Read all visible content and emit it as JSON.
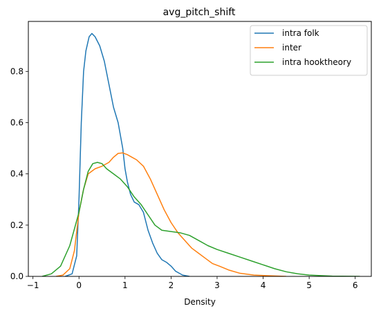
{
  "chart_data": {
    "type": "line",
    "title": "avg_pitch_shift",
    "xlabel": "Density",
    "ylabel": "",
    "xlim": [
      -1.1,
      6.35
    ],
    "ylim": [
      0,
      0.995
    ],
    "xticks": [
      -1,
      0,
      1,
      2,
      3,
      4,
      5,
      6
    ],
    "xtick_labels": [
      "−1",
      "0",
      "1",
      "2",
      "3",
      "4",
      "5",
      "6"
    ],
    "yticks": [
      0.0,
      0.2,
      0.4,
      0.6,
      0.8
    ],
    "ytick_labels": [
      "0.0",
      "0.2",
      "0.4",
      "0.6",
      "0.8"
    ],
    "grid": false,
    "legend_position": "top-right",
    "series": [
      {
        "name": "intra folk",
        "color": "#1f77b4",
        "points": [
          [
            -0.3,
            0.0
          ],
          [
            -0.15,
            0.01
          ],
          [
            -0.05,
            0.08
          ],
          [
            0.0,
            0.3
          ],
          [
            0.05,
            0.6
          ],
          [
            0.1,
            0.8
          ],
          [
            0.15,
            0.88
          ],
          [
            0.22,
            0.935
          ],
          [
            0.28,
            0.948
          ],
          [
            0.35,
            0.935
          ],
          [
            0.45,
            0.9
          ],
          [
            0.55,
            0.84
          ],
          [
            0.65,
            0.75
          ],
          [
            0.75,
            0.66
          ],
          [
            0.85,
            0.6
          ],
          [
            0.95,
            0.5
          ],
          [
            1.0,
            0.42
          ],
          [
            1.05,
            0.37
          ],
          [
            1.12,
            0.32
          ],
          [
            1.2,
            0.29
          ],
          [
            1.3,
            0.28
          ],
          [
            1.4,
            0.25
          ],
          [
            1.5,
            0.18
          ],
          [
            1.6,
            0.13
          ],
          [
            1.7,
            0.09
          ],
          [
            1.8,
            0.065
          ],
          [
            1.9,
            0.055
          ],
          [
            2.0,
            0.04
          ],
          [
            2.1,
            0.02
          ],
          [
            2.25,
            0.005
          ],
          [
            2.4,
            0.0
          ]
        ]
      },
      {
        "name": "inter",
        "color": "#ff7f0e",
        "points": [
          [
            -0.5,
            0.0
          ],
          [
            -0.35,
            0.005
          ],
          [
            -0.2,
            0.03
          ],
          [
            -0.1,
            0.1
          ],
          [
            0.0,
            0.25
          ],
          [
            0.1,
            0.34
          ],
          [
            0.2,
            0.4
          ],
          [
            0.35,
            0.42
          ],
          [
            0.5,
            0.43
          ],
          [
            0.65,
            0.445
          ],
          [
            0.75,
            0.465
          ],
          [
            0.85,
            0.48
          ],
          [
            0.95,
            0.482
          ],
          [
            1.05,
            0.475
          ],
          [
            1.15,
            0.465
          ],
          [
            1.25,
            0.455
          ],
          [
            1.4,
            0.43
          ],
          [
            1.55,
            0.38
          ],
          [
            1.7,
            0.32
          ],
          [
            1.85,
            0.26
          ],
          [
            2.0,
            0.21
          ],
          [
            2.15,
            0.17
          ],
          [
            2.3,
            0.14
          ],
          [
            2.45,
            0.11
          ],
          [
            2.6,
            0.09
          ],
          [
            2.75,
            0.07
          ],
          [
            2.9,
            0.05
          ],
          [
            3.05,
            0.04
          ],
          [
            3.25,
            0.025
          ],
          [
            3.5,
            0.012
          ],
          [
            3.8,
            0.005
          ],
          [
            4.2,
            0.002
          ],
          [
            4.5,
            0.0
          ]
        ]
      },
      {
        "name": "intra hooktheory",
        "color": "#2ca02c",
        "points": [
          [
            -0.8,
            0.0
          ],
          [
            -0.6,
            0.01
          ],
          [
            -0.4,
            0.04
          ],
          [
            -0.2,
            0.12
          ],
          [
            0.0,
            0.25
          ],
          [
            0.1,
            0.34
          ],
          [
            0.2,
            0.41
          ],
          [
            0.3,
            0.44
          ],
          [
            0.4,
            0.445
          ],
          [
            0.5,
            0.44
          ],
          [
            0.6,
            0.42
          ],
          [
            0.75,
            0.4
          ],
          [
            0.9,
            0.38
          ],
          [
            1.05,
            0.35
          ],
          [
            1.2,
            0.31
          ],
          [
            1.35,
            0.28
          ],
          [
            1.5,
            0.24
          ],
          [
            1.65,
            0.2
          ],
          [
            1.8,
            0.18
          ],
          [
            2.0,
            0.175
          ],
          [
            2.2,
            0.17
          ],
          [
            2.4,
            0.16
          ],
          [
            2.6,
            0.14
          ],
          [
            2.8,
            0.12
          ],
          [
            3.0,
            0.105
          ],
          [
            3.25,
            0.09
          ],
          [
            3.5,
            0.075
          ],
          [
            3.75,
            0.06
          ],
          [
            4.0,
            0.045
          ],
          [
            4.25,
            0.03
          ],
          [
            4.5,
            0.018
          ],
          [
            4.75,
            0.01
          ],
          [
            5.0,
            0.005
          ],
          [
            5.5,
            0.001
          ],
          [
            6.1,
            0.0
          ]
        ]
      }
    ]
  }
}
